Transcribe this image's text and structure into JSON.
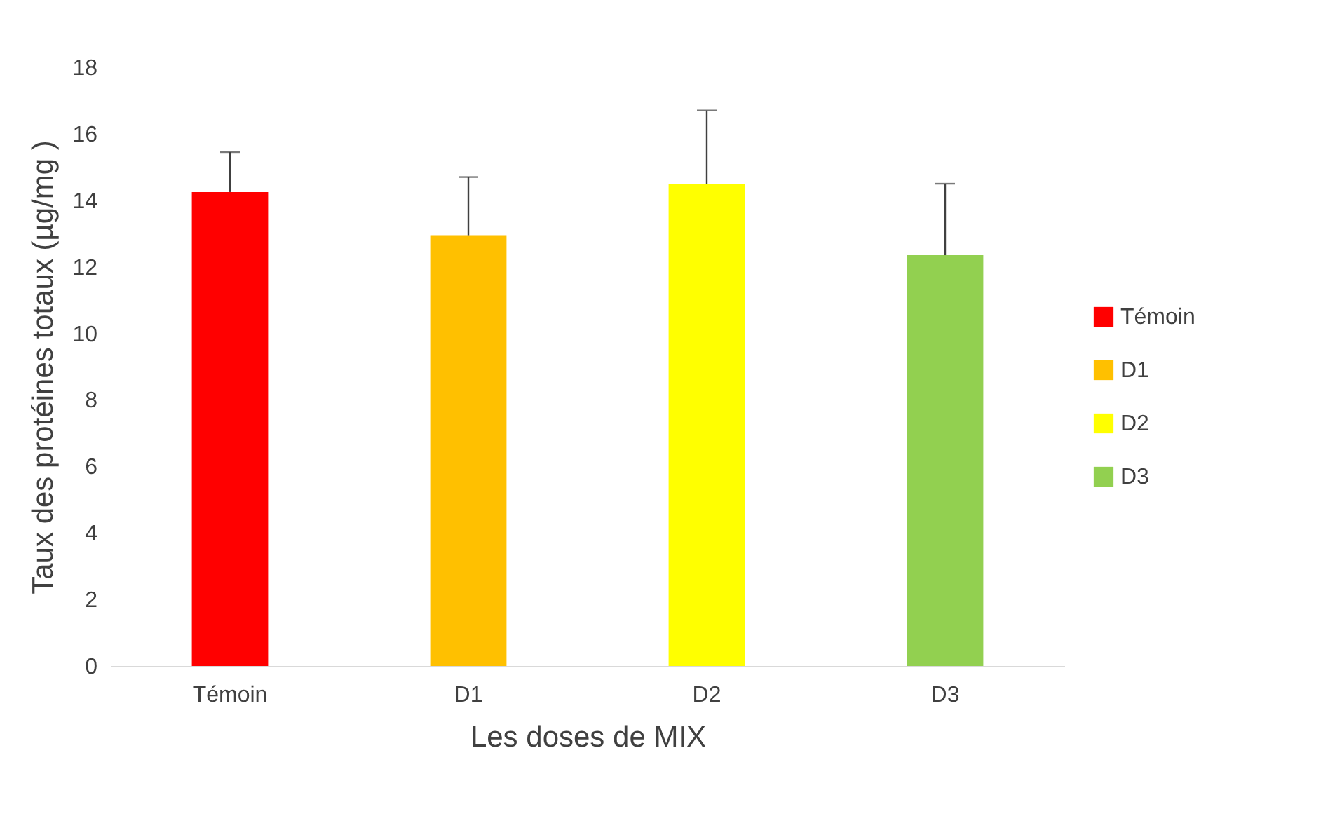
{
  "chart_data": {
    "type": "bar",
    "xlabel": "Les doses de MIX",
    "ylabel": "Taux des protéines totaux (µg/mg )",
    "categories": [
      "Témoin",
      "D1",
      "D2",
      "D3"
    ],
    "series": [
      {
        "name": "Témoin",
        "color": "#ff0000",
        "values": [
          14.25,
          null,
          null,
          null
        ],
        "errors": [
          [
            14.25,
            15.45
          ],
          null,
          null,
          null
        ]
      },
      {
        "name": "D1",
        "color": "#ffc000",
        "values": [
          null,
          12.95,
          null,
          null
        ],
        "errors": [
          null,
          [
            12.95,
            14.7
          ],
          null,
          null
        ]
      },
      {
        "name": "D2",
        "color": "#ffff00",
        "values": [
          null,
          null,
          14.5,
          null
        ],
        "errors": [
          null,
          null,
          [
            14.5,
            16.7
          ],
          null
        ]
      },
      {
        "name": "D3",
        "color": "#92d050",
        "values": [
          null,
          null,
          null,
          12.35
        ],
        "errors": [
          null,
          null,
          null,
          [
            12.35,
            14.5
          ]
        ]
      }
    ],
    "ylim": [
      0,
      18
    ],
    "yticks": [
      0,
      2,
      4,
      6,
      8,
      10,
      12,
      14,
      16,
      18
    ],
    "grid": false,
    "legend": "right"
  }
}
